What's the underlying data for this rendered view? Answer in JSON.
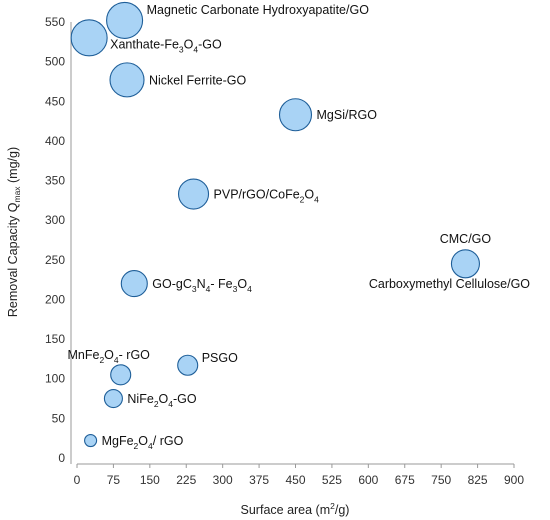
{
  "chart_data": {
    "type": "scatter",
    "title": "",
    "xlabel": "Surface area (m²/g)",
    "ylabel": "Removal Capacity Q",
    "ylabel_sub": "max",
    "ylabel_unit": "(mg/g)",
    "xlim": [
      0,
      900
    ],
    "ylim": [
      0,
      550
    ],
    "x_ticks": [
      0,
      75,
      150,
      225,
      300,
      375,
      450,
      525,
      600,
      675,
      750,
      825,
      900
    ],
    "y_ticks": [
      0,
      50,
      100,
      150,
      200,
      250,
      300,
      350,
      400,
      450,
      500,
      550
    ],
    "grid": false,
    "colors": {
      "fill": "#a9d3f5",
      "stroke": "#1f5f99",
      "axis": "#999999"
    },
    "points": [
      {
        "label": [
          {
            "t": "Magnetic Carbonate Hydroxyapatite/GO"
          }
        ],
        "x": 98,
        "y": 552,
        "size": 18,
        "label_pos": "right-up"
      },
      {
        "label": [
          {
            "t": "Xanthate-Fe"
          },
          {
            "t": "3",
            "sub": true
          },
          {
            "t": "O"
          },
          {
            "t": "4",
            "sub": true
          },
          {
            "t": "-GO"
          }
        ],
        "x": 25,
        "y": 530,
        "size": 18,
        "label_pos": "right-down"
      },
      {
        "label": [
          {
            "t": "Nickel Ferrite-GO"
          }
        ],
        "x": 103,
        "y": 477,
        "size": 17,
        "label_pos": "right"
      },
      {
        "label": [
          {
            "t": "MgSi/RGO"
          }
        ],
        "x": 450,
        "y": 433,
        "size": 16,
        "label_pos": "right"
      },
      {
        "label": [
          {
            "t": "PVP/rGO/CoFe"
          },
          {
            "t": "2",
            "sub": true
          },
          {
            "t": "O"
          },
          {
            "t": "4",
            "sub": true
          }
        ],
        "x": 240,
        "y": 333,
        "size": 15,
        "label_pos": "right"
      },
      {
        "label": [
          {
            "t": "CMC/GO"
          }
        ],
        "x": 800,
        "y": 245,
        "size": 14,
        "label_pos": "above"
      },
      {
        "label": [
          {
            "t": "Carboxymethyl Cellulose/GO"
          }
        ],
        "x": 800,
        "y": 245,
        "size": 0,
        "label_pos": "below"
      },
      {
        "label": [
          {
            "t": "GO-gC"
          },
          {
            "t": "3",
            "sub": true
          },
          {
            "t": "N"
          },
          {
            "t": "4",
            "sub": true
          },
          {
            "t": "- Fe"
          },
          {
            "t": "3",
            "sub": true
          },
          {
            "t": "O"
          },
          {
            "t": "4",
            "sub": true
          }
        ],
        "x": 118,
        "y": 220,
        "size": 13,
        "label_pos": "right"
      },
      {
        "label": [
          {
            "t": "MnFe"
          },
          {
            "t": "2",
            "sub": true
          },
          {
            "t": "O"
          },
          {
            "t": "4",
            "sub": true
          },
          {
            "t": "- rGO"
          }
        ],
        "x": 90,
        "y": 105,
        "size": 10,
        "label_pos": "above-left"
      },
      {
        "label": [
          {
            "t": "PSGO"
          }
        ],
        "x": 228,
        "y": 117,
        "size": 10,
        "label_pos": "right-up"
      },
      {
        "label": [
          {
            "t": "NiFe"
          },
          {
            "t": "2",
            "sub": true
          },
          {
            "t": "O"
          },
          {
            "t": "4",
            "sub": true
          },
          {
            "t": "-GO"
          }
        ],
        "x": 75,
        "y": 75,
        "size": 9,
        "label_pos": "right"
      },
      {
        "label": [
          {
            "t": "MgFe"
          },
          {
            "t": "2",
            "sub": true
          },
          {
            "t": "O"
          },
          {
            "t": "4",
            "sub": true
          },
          {
            "t": "/ rGO"
          }
        ],
        "x": 28,
        "y": 22,
        "size": 6,
        "label_pos": "right"
      }
    ]
  }
}
